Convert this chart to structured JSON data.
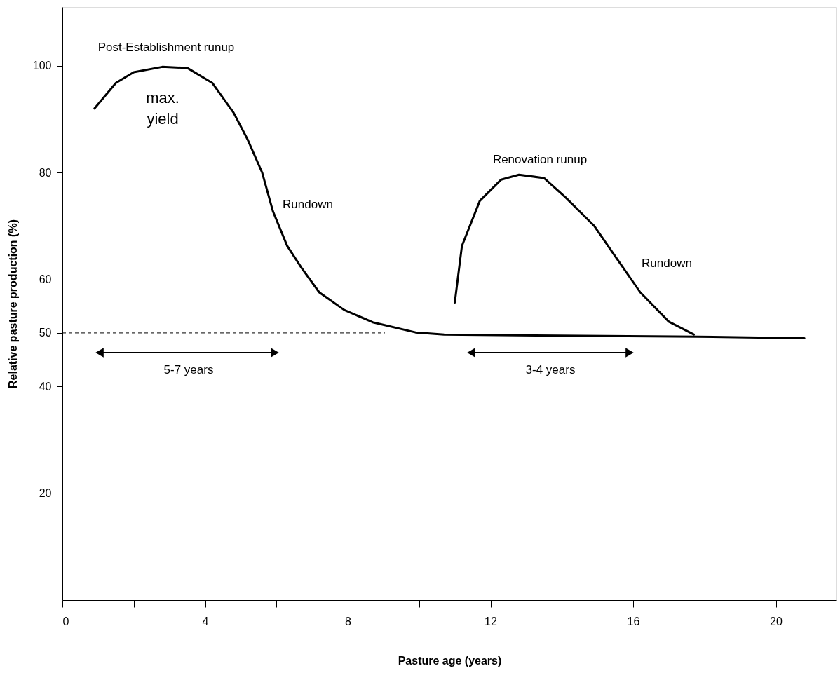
{
  "chart_data": {
    "type": "line",
    "xlabel": "Pasture age (years)",
    "ylabel": "Relative pasture production (%)",
    "xlim": [
      0,
      21.7
    ],
    "ylim": [
      0,
      111
    ],
    "xticks": [
      0,
      {
        "value": 2,
        "label": null
      },
      4,
      {
        "value": 6,
        "label": null
      },
      8,
      {
        "value": 10,
        "label": null
      },
      12,
      {
        "value": 14,
        "label": null
      },
      16,
      {
        "value": 18,
        "label": null
      },
      20
    ],
    "yticks": [
      20,
      40,
      50,
      60,
      80,
      100
    ],
    "grid": false,
    "legend": false,
    "marker": "none",
    "line_style": "solid",
    "series": [
      {
        "color": "#000000",
        "x": [
          0.9,
          1.5,
          2.0,
          2.8,
          3.5,
          4.2,
          4.8,
          5.2,
          5.6,
          5.9,
          6.3,
          6.7,
          7.2,
          7.9,
          8.7,
          9.9,
          10.7,
          13.9,
          17.8,
          20.8
        ],
        "values": [
          92,
          96.8,
          98.8,
          99.8,
          99.6,
          96.8,
          91.2,
          86.1,
          80,
          72.8,
          66.3,
          62.2,
          57.6,
          54.3,
          52,
          50.1,
          49.7,
          49.5,
          49.3,
          49
        ]
      },
      {
        "color": "#000000",
        "x": [
          11.0,
          11.2,
          11.7,
          12.3,
          12.8,
          13.5,
          14.1,
          14.9,
          15.5,
          16.2,
          17.0,
          17.7
        ],
        "values": [
          55.7,
          66.3,
          74.7,
          78.7,
          79.6,
          79,
          75.4,
          70.1,
          64.3,
          57.6,
          52.1,
          49.7
        ]
      }
    ],
    "ref_lines": [
      {
        "axis": "y",
        "value": 50,
        "line_style": "dashed",
        "color": "#000000"
      }
    ],
    "annotations": [
      "Post-Establishment runup",
      "max. yield",
      "Rundown",
      "Renovation runup",
      "Rundown",
      "5-7 years",
      "3-4 years"
    ]
  }
}
